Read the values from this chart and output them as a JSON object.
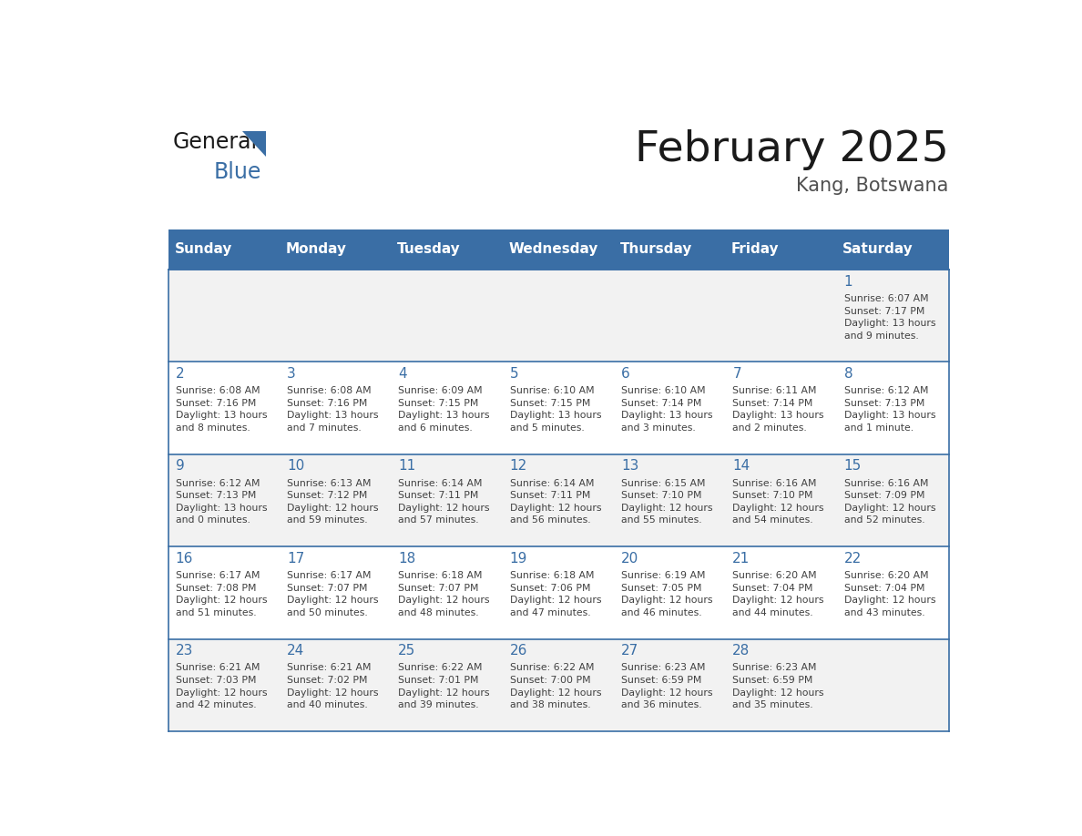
{
  "title": "February 2025",
  "subtitle": "Kang, Botswana",
  "days_of_week": [
    "Sunday",
    "Monday",
    "Tuesday",
    "Wednesday",
    "Thursday",
    "Friday",
    "Saturday"
  ],
  "header_bg": "#3A6EA5",
  "header_text": "#FFFFFF",
  "cell_bg_odd": "#F2F2F2",
  "cell_bg_even": "#FFFFFF",
  "border_color": "#3A6EA5",
  "day_number_color": "#3A6EA5",
  "text_color": "#404040",
  "title_color": "#1a1a1a",
  "subtitle_color": "#505050",
  "logo_general_color": "#1a1a1a",
  "logo_blue_color": "#3A6EA5",
  "weeks": [
    [
      {
        "day": null,
        "info": null
      },
      {
        "day": null,
        "info": null
      },
      {
        "day": null,
        "info": null
      },
      {
        "day": null,
        "info": null
      },
      {
        "day": null,
        "info": null
      },
      {
        "day": null,
        "info": null
      },
      {
        "day": 1,
        "info": "Sunrise: 6:07 AM\nSunset: 7:17 PM\nDaylight: 13 hours\nand 9 minutes."
      }
    ],
    [
      {
        "day": 2,
        "info": "Sunrise: 6:08 AM\nSunset: 7:16 PM\nDaylight: 13 hours\nand 8 minutes."
      },
      {
        "day": 3,
        "info": "Sunrise: 6:08 AM\nSunset: 7:16 PM\nDaylight: 13 hours\nand 7 minutes."
      },
      {
        "day": 4,
        "info": "Sunrise: 6:09 AM\nSunset: 7:15 PM\nDaylight: 13 hours\nand 6 minutes."
      },
      {
        "day": 5,
        "info": "Sunrise: 6:10 AM\nSunset: 7:15 PM\nDaylight: 13 hours\nand 5 minutes."
      },
      {
        "day": 6,
        "info": "Sunrise: 6:10 AM\nSunset: 7:14 PM\nDaylight: 13 hours\nand 3 minutes."
      },
      {
        "day": 7,
        "info": "Sunrise: 6:11 AM\nSunset: 7:14 PM\nDaylight: 13 hours\nand 2 minutes."
      },
      {
        "day": 8,
        "info": "Sunrise: 6:12 AM\nSunset: 7:13 PM\nDaylight: 13 hours\nand 1 minute."
      }
    ],
    [
      {
        "day": 9,
        "info": "Sunrise: 6:12 AM\nSunset: 7:13 PM\nDaylight: 13 hours\nand 0 minutes."
      },
      {
        "day": 10,
        "info": "Sunrise: 6:13 AM\nSunset: 7:12 PM\nDaylight: 12 hours\nand 59 minutes."
      },
      {
        "day": 11,
        "info": "Sunrise: 6:14 AM\nSunset: 7:11 PM\nDaylight: 12 hours\nand 57 minutes."
      },
      {
        "day": 12,
        "info": "Sunrise: 6:14 AM\nSunset: 7:11 PM\nDaylight: 12 hours\nand 56 minutes."
      },
      {
        "day": 13,
        "info": "Sunrise: 6:15 AM\nSunset: 7:10 PM\nDaylight: 12 hours\nand 55 minutes."
      },
      {
        "day": 14,
        "info": "Sunrise: 6:16 AM\nSunset: 7:10 PM\nDaylight: 12 hours\nand 54 minutes."
      },
      {
        "day": 15,
        "info": "Sunrise: 6:16 AM\nSunset: 7:09 PM\nDaylight: 12 hours\nand 52 minutes."
      }
    ],
    [
      {
        "day": 16,
        "info": "Sunrise: 6:17 AM\nSunset: 7:08 PM\nDaylight: 12 hours\nand 51 minutes."
      },
      {
        "day": 17,
        "info": "Sunrise: 6:17 AM\nSunset: 7:07 PM\nDaylight: 12 hours\nand 50 minutes."
      },
      {
        "day": 18,
        "info": "Sunrise: 6:18 AM\nSunset: 7:07 PM\nDaylight: 12 hours\nand 48 minutes."
      },
      {
        "day": 19,
        "info": "Sunrise: 6:18 AM\nSunset: 7:06 PM\nDaylight: 12 hours\nand 47 minutes."
      },
      {
        "day": 20,
        "info": "Sunrise: 6:19 AM\nSunset: 7:05 PM\nDaylight: 12 hours\nand 46 minutes."
      },
      {
        "day": 21,
        "info": "Sunrise: 6:20 AM\nSunset: 7:04 PM\nDaylight: 12 hours\nand 44 minutes."
      },
      {
        "day": 22,
        "info": "Sunrise: 6:20 AM\nSunset: 7:04 PM\nDaylight: 12 hours\nand 43 minutes."
      }
    ],
    [
      {
        "day": 23,
        "info": "Sunrise: 6:21 AM\nSunset: 7:03 PM\nDaylight: 12 hours\nand 42 minutes."
      },
      {
        "day": 24,
        "info": "Sunrise: 6:21 AM\nSunset: 7:02 PM\nDaylight: 12 hours\nand 40 minutes."
      },
      {
        "day": 25,
        "info": "Sunrise: 6:22 AM\nSunset: 7:01 PM\nDaylight: 12 hours\nand 39 minutes."
      },
      {
        "day": 26,
        "info": "Sunrise: 6:22 AM\nSunset: 7:00 PM\nDaylight: 12 hours\nand 38 minutes."
      },
      {
        "day": 27,
        "info": "Sunrise: 6:23 AM\nSunset: 6:59 PM\nDaylight: 12 hours\nand 36 minutes."
      },
      {
        "day": 28,
        "info": "Sunrise: 6:23 AM\nSunset: 6:59 PM\nDaylight: 12 hours\nand 35 minutes."
      },
      {
        "day": null,
        "info": null
      }
    ]
  ]
}
